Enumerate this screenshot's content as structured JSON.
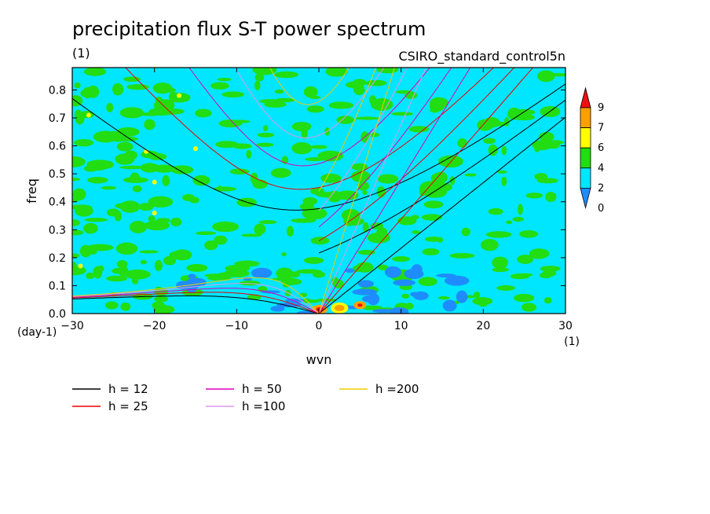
{
  "chart_data": {
    "type": "heatmap",
    "title": "precipitation flux S-T power spectrum",
    "units_label": "(1)",
    "source_label": "CSIRO_standard_control5n",
    "xlabel": "wvn",
    "ylabel": "freq",
    "x_units": "(1)",
    "y_units": "(day-1)",
    "xlim": [
      -30,
      30
    ],
    "ylim": [
      0.0,
      0.88
    ],
    "xticks": [
      -30,
      -20,
      -10,
      0,
      10,
      20,
      30
    ],
    "yticks": [
      0.0,
      0.1,
      0.2,
      0.3,
      0.4,
      0.5,
      0.6,
      0.7,
      0.8
    ],
    "xtick_labels": [
      "−30",
      "−20",
      "−10",
      "0",
      "10",
      "20",
      "30"
    ],
    "ytick_labels": [
      "0.0",
      "0.1",
      "0.2",
      "0.3",
      "0.4",
      "0.5",
      "0.6",
      "0.7",
      "0.8"
    ],
    "colorbar": {
      "levels": [
        "0",
        "2",
        "4",
        "6",
        "7",
        "9"
      ],
      "colors": [
        "#1e8cff",
        "#00e6ff",
        "#22dd11",
        "#ffff00",
        "#ffa000",
        "#ee1010"
      ]
    },
    "dispersion_curves": [
      {
        "name": "h = 12",
        "h": 12,
        "color": "#000000"
      },
      {
        "name": "h = 25",
        "h": 25,
        "color": "#ee0000"
      },
      {
        "name": "h = 50",
        "h": 50,
        "color": "#dd00bb"
      },
      {
        "name": "h =100",
        "h": 100,
        "color": "#dd99ee"
      },
      {
        "name": "h =200",
        "h": 200,
        "color": "#eecc00"
      }
    ],
    "grid": false
  },
  "colors": {
    "background_field": "#00e6ff",
    "axis": "#000000"
  }
}
